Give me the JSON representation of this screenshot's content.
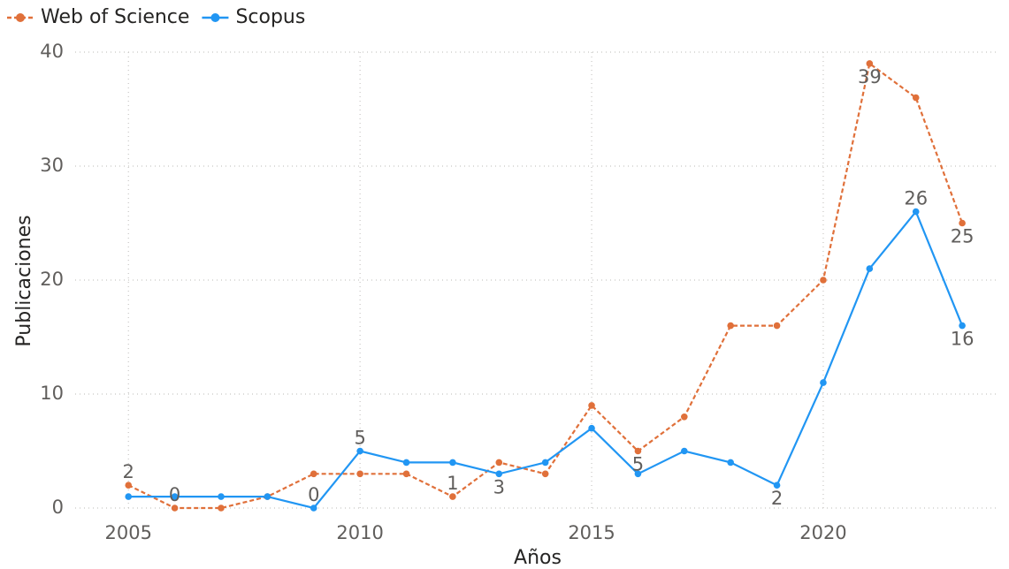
{
  "chart_data": {
    "type": "line",
    "x_label": "Años",
    "y_label": "Publicaciones",
    "x": [
      2005,
      2006,
      2007,
      2008,
      2009,
      2010,
      2011,
      2012,
      2013,
      2014,
      2015,
      2016,
      2017,
      2018,
      2019,
      2020,
      2021,
      2022,
      2023
    ],
    "series": [
      {
        "name": "Web of Science",
        "color": "#e0703a",
        "dashed": true,
        "values": [
          2,
          0,
          0,
          1,
          3,
          3,
          3,
          1,
          4,
          3,
          9,
          5,
          8,
          16,
          16,
          20,
          39,
          36,
          25
        ],
        "value_labels": [
          "2",
          "0",
          null,
          null,
          null,
          null,
          null,
          "1",
          null,
          null,
          null,
          "5",
          null,
          null,
          null,
          null,
          "39",
          null,
          "25"
        ]
      },
      {
        "name": "Scopus",
        "color": "#2196f3",
        "dashed": false,
        "values": [
          1,
          1,
          1,
          1,
          0,
          5,
          4,
          4,
          3,
          4,
          7,
          3,
          5,
          4,
          2,
          11,
          21,
          26,
          16
        ],
        "value_labels": [
          null,
          null,
          null,
          null,
          "0",
          "5",
          null,
          null,
          "3",
          null,
          null,
          null,
          null,
          null,
          "2",
          null,
          null,
          "26",
          "16"
        ]
      }
    ],
    "xlim": [
      2003.85,
      2023.8
    ],
    "xticks": [
      2005,
      2010,
      2015,
      2020
    ],
    "ylim": [
      0,
      40
    ],
    "yticks": [
      0,
      10,
      20,
      30,
      40
    ],
    "grid": true,
    "legend": "top-left"
  }
}
